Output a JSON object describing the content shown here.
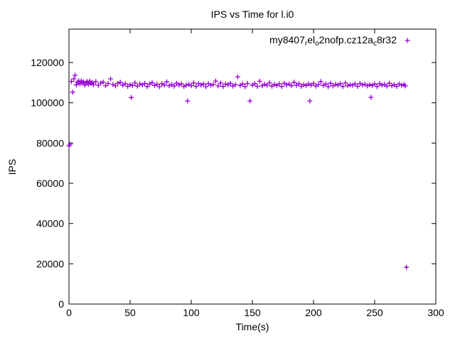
{
  "chart_data": {
    "type": "scatter",
    "title": "IPS vs Time for l.i0",
    "xlabel": "Time(s)",
    "ylabel": "IPS",
    "xlim": [
      0,
      300
    ],
    "ylim": [
      0,
      136600
    ],
    "xticks": [
      0,
      50,
      100,
      150,
      200,
      250,
      300
    ],
    "yticks": [
      0,
      20000,
      40000,
      60000,
      80000,
      100000,
      120000
    ],
    "grid": false,
    "legend": {
      "position": "top-right-inside",
      "series_label_plain": "my8407_rel_o2nofp.cz12a_c8r32",
      "segments": [
        {
          "t": "my8407",
          "sub": false
        },
        {
          "t": "r",
          "sub": true
        },
        {
          "t": "el",
          "sub": false
        },
        {
          "t": "o",
          "sub": true
        },
        {
          "t": "2nofp.cz12a",
          "sub": false
        },
        {
          "t": "c",
          "sub": true
        },
        {
          "t": "8r32",
          "sub": false
        }
      ]
    },
    "series": [
      {
        "name": "my8407_rel_o2nofp.cz12a_c8r32",
        "marker": "plus",
        "color": "#9400d3",
        "points": [
          [
            0,
            78600
          ],
          [
            1,
            79400
          ],
          [
            2,
            110600
          ],
          [
            3,
            105300
          ],
          [
            4,
            111900
          ],
          [
            5,
            113700
          ],
          [
            6,
            108900
          ],
          [
            7,
            110200
          ],
          [
            8,
            110800
          ],
          [
            9,
            109400
          ],
          [
            10,
            110900
          ],
          [
            11,
            109800
          ],
          [
            12,
            110400
          ],
          [
            13,
            108800
          ],
          [
            14,
            109900
          ],
          [
            15,
            110600
          ],
          [
            16,
            109200
          ],
          [
            17,
            110800
          ],
          [
            18,
            109600
          ],
          [
            19,
            110100
          ],
          [
            20,
            109000
          ],
          [
            22,
            110500
          ],
          [
            24,
            108700
          ],
          [
            26,
            109800
          ],
          [
            28,
            110300
          ],
          [
            30,
            108500
          ],
          [
            32,
            109600
          ],
          [
            34,
            111900
          ],
          [
            36,
            109100
          ],
          [
            38,
            108400
          ],
          [
            40,
            109700
          ],
          [
            42,
            110200
          ],
          [
            44,
            108800
          ],
          [
            46,
            109500
          ],
          [
            48,
            108200
          ],
          [
            50,
            109000
          ],
          [
            51,
            102600
          ],
          [
            52,
            108600
          ],
          [
            54,
            109900
          ],
          [
            56,
            108300
          ],
          [
            58,
            109400
          ],
          [
            60,
            108900
          ],
          [
            62,
            109600
          ],
          [
            64,
            108100
          ],
          [
            66,
            109300
          ],
          [
            68,
            110000
          ],
          [
            70,
            108600
          ],
          [
            72,
            109200
          ],
          [
            74,
            108000
          ],
          [
            76,
            109500
          ],
          [
            78,
            108800
          ],
          [
            80,
            110400
          ],
          [
            82,
            108500
          ],
          [
            84,
            109100
          ],
          [
            86,
            108300
          ],
          [
            88,
            109700
          ],
          [
            90,
            108900
          ],
          [
            92,
            109400
          ],
          [
            94,
            108100
          ],
          [
            96,
            108800
          ],
          [
            97,
            100900
          ],
          [
            98,
            109200
          ],
          [
            100,
            108500
          ],
          [
            102,
            109900
          ],
          [
            104,
            108200
          ],
          [
            106,
            109600
          ],
          [
            108,
            108800
          ],
          [
            110,
            109300
          ],
          [
            112,
            108000
          ],
          [
            114,
            109500
          ],
          [
            116,
            108700
          ],
          [
            118,
            109100
          ],
          [
            120,
            110800
          ],
          [
            122,
            108400
          ],
          [
            124,
            109800
          ],
          [
            126,
            108100
          ],
          [
            128,
            109400
          ],
          [
            130,
            108900
          ],
          [
            132,
            109700
          ],
          [
            134,
            108300
          ],
          [
            136,
            109000
          ],
          [
            138,
            112900
          ],
          [
            140,
            108600
          ],
          [
            142,
            109300
          ],
          [
            144,
            108000
          ],
          [
            146,
            109600
          ],
          [
            148,
            100900
          ],
          [
            150,
            108800
          ],
          [
            152,
            109500
          ],
          [
            154,
            108200
          ],
          [
            156,
            110700
          ],
          [
            158,
            108500
          ],
          [
            160,
            109200
          ],
          [
            162,
            108700
          ],
          [
            164,
            109900
          ],
          [
            166,
            108300
          ],
          [
            168,
            109100
          ],
          [
            170,
            108600
          ],
          [
            172,
            109400
          ],
          [
            174,
            108100
          ],
          [
            176,
            109700
          ],
          [
            178,
            108900
          ],
          [
            180,
            109300
          ],
          [
            182,
            108500
          ],
          [
            184,
            110200
          ],
          [
            186,
            108700
          ],
          [
            188,
            109500
          ],
          [
            190,
            108200
          ],
          [
            192,
            109000
          ],
          [
            194,
            108600
          ],
          [
            196,
            109400
          ],
          [
            197,
            100900
          ],
          [
            198,
            108800
          ],
          [
            200,
            109600
          ],
          [
            202,
            108300
          ],
          [
            204,
            109100
          ],
          [
            206,
            110500
          ],
          [
            208,
            108600
          ],
          [
            210,
            109300
          ],
          [
            212,
            108000
          ],
          [
            214,
            109700
          ],
          [
            216,
            108400
          ],
          [
            218,
            109200
          ],
          [
            220,
            108800
          ],
          [
            222,
            109500
          ],
          [
            224,
            108100
          ],
          [
            226,
            109800
          ],
          [
            228,
            108500
          ],
          [
            230,
            109000
          ],
          [
            232,
            108700
          ],
          [
            234,
            109400
          ],
          [
            236,
            108200
          ],
          [
            238,
            109600
          ],
          [
            240,
            108900
          ],
          [
            242,
            109200
          ],
          [
            244,
            108400
          ],
          [
            246,
            109000
          ],
          [
            247,
            102700
          ],
          [
            248,
            108600
          ],
          [
            250,
            109300
          ],
          [
            252,
            108100
          ],
          [
            254,
            109500
          ],
          [
            256,
            108800
          ],
          [
            258,
            109100
          ],
          [
            260,
            108300
          ],
          [
            262,
            109700
          ],
          [
            264,
            108500
          ],
          [
            266,
            109000
          ],
          [
            268,
            108200
          ],
          [
            270,
            109400
          ],
          [
            272,
            108700
          ],
          [
            274,
            109100
          ],
          [
            275,
            108400
          ],
          [
            276,
            18300
          ]
        ]
      }
    ]
  }
}
